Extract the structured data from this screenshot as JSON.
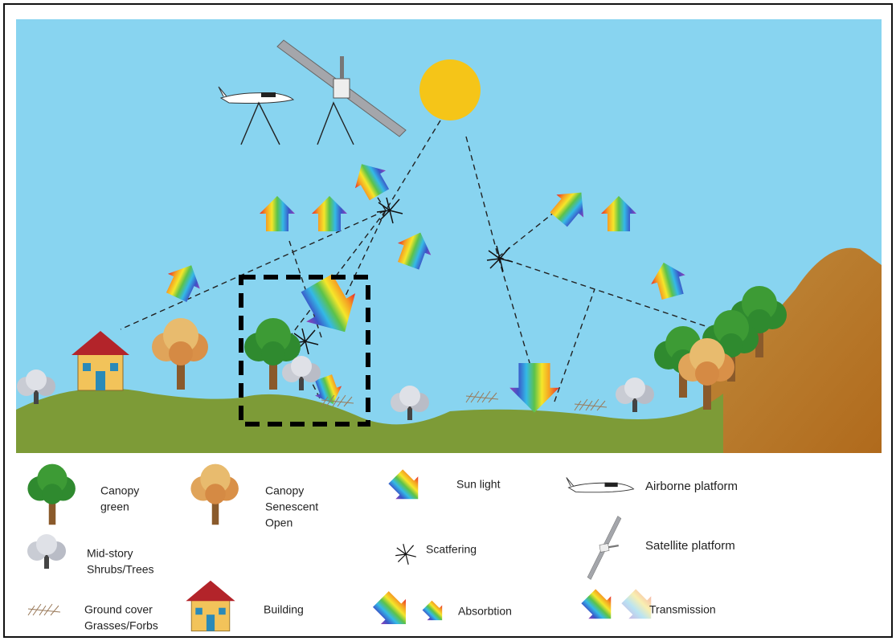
{
  "legend": {
    "items": [
      {
        "lines": [
          "Canopy",
          "green"
        ]
      },
      {
        "lines": [
          "Canopy",
          "Senescent",
          "Open"
        ]
      },
      {
        "lines": [
          "Mid-story",
          "Shrubs/Trees"
        ]
      },
      {
        "lines": [
          "Ground cover",
          "Grasses/Forbs"
        ]
      },
      {
        "lines": [
          "Building"
        ]
      },
      {
        "lines": [
          "Sun light"
        ]
      },
      {
        "lines": [
          "Scatfering"
        ]
      },
      {
        "lines": [
          "Absorbtion"
        ]
      },
      {
        "lines": [
          "Airborne platform"
        ]
      },
      {
        "lines": [
          "Satellite platform"
        ]
      },
      {
        "lines": [
          "Transmission"
        ]
      }
    ]
  }
}
